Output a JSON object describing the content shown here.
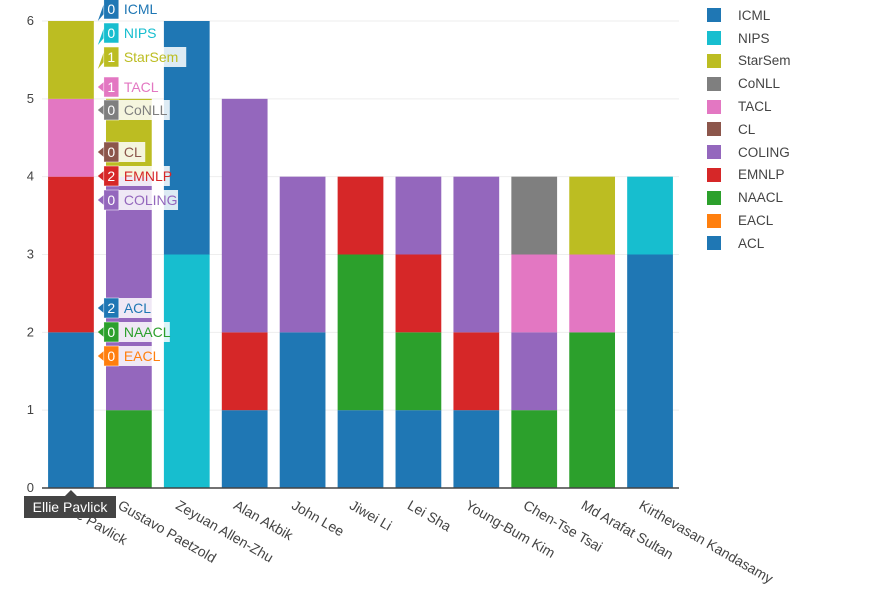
{
  "chart_data": {
    "type": "bar",
    "stacked": true,
    "categories": [
      "Ellie Pavlick",
      "Gustavo Paetzold",
      "Zeyuan Allen-Zhu",
      "Alan Akbik",
      "John Lee",
      "Jiwei Li",
      "Lei Sha",
      "Young-Bum Kim",
      "Chen-Tse Tsai",
      "Md Arafat Sultan",
      "Kirthevasan Kandasamy"
    ],
    "ylim": [
      0,
      6
    ],
    "yticks": [
      "0",
      "1",
      "2",
      "3",
      "4",
      "5",
      "6"
    ],
    "series": [
      {
        "name": "ACL",
        "color": "#1f77b4",
        "values": [
          2,
          0,
          0,
          1,
          2,
          1,
          1,
          1,
          0,
          0,
          3
        ]
      },
      {
        "name": "EACL",
        "color": "#ff7f0e",
        "values": [
          0,
          0,
          0,
          0,
          0,
          0,
          0,
          0,
          0,
          0,
          0
        ]
      },
      {
        "name": "NAACL",
        "color": "#2ca02c",
        "values": [
          0,
          1,
          0,
          0,
          0,
          2,
          1,
          0,
          1,
          2,
          0
        ]
      },
      {
        "name": "EMNLP",
        "color": "#d62728",
        "values": [
          2,
          0,
          0,
          1,
          0,
          1,
          1,
          1,
          0,
          0,
          0
        ]
      },
      {
        "name": "COLING",
        "color": "#9467bd",
        "values": [
          0,
          3,
          0,
          3,
          2,
          0,
          1,
          2,
          1,
          0,
          0
        ]
      },
      {
        "name": "CL",
        "color": "#8c564b",
        "values": [
          0,
          0,
          0,
          0,
          0,
          0,
          0,
          0,
          0,
          0,
          0
        ]
      },
      {
        "name": "TACL",
        "color": "#e377c2",
        "values": [
          1,
          0,
          0,
          0,
          0,
          0,
          0,
          0,
          1,
          1,
          0
        ]
      },
      {
        "name": "CoNLL",
        "color": "#7f7f7f",
        "values": [
          0,
          0,
          0,
          0,
          0,
          0,
          0,
          0,
          1,
          0,
          0
        ]
      },
      {
        "name": "StarSem",
        "color": "#bcbd22",
        "values": [
          1,
          1,
          0,
          0,
          0,
          0,
          0,
          0,
          0,
          1,
          0
        ]
      },
      {
        "name": "NIPS",
        "color": "#17becf",
        "values": [
          0,
          0,
          3,
          0,
          0,
          0,
          0,
          0,
          0,
          0,
          1
        ]
      },
      {
        "name": "ICML",
        "color": "#1f77b4",
        "values": [
          0,
          0,
          3,
          0,
          0,
          0,
          0,
          0,
          0,
          0,
          0
        ]
      }
    ],
    "legend_order": [
      "ICML",
      "NIPS",
      "StarSem",
      "CoNLL",
      "TACL",
      "CL",
      "COLING",
      "EMNLP",
      "NAACL",
      "EACL",
      "ACL"
    ],
    "legend_position": "top-right",
    "hover": {
      "category": "Ellie Pavlick",
      "axis_label": "Ellie Pavlick",
      "labels": [
        {
          "series": "ICML",
          "value": "0"
        },
        {
          "series": "NIPS",
          "value": "0"
        },
        {
          "series": "StarSem",
          "value": "1"
        },
        {
          "series": "TACL",
          "value": "1"
        },
        {
          "series": "CoNLL",
          "value": "0"
        },
        {
          "series": "CL",
          "value": "0"
        },
        {
          "series": "EMNLP",
          "value": "2"
        },
        {
          "series": "COLING",
          "value": "0"
        },
        {
          "series": "ACL",
          "value": "2"
        },
        {
          "series": "NAACL",
          "value": "0"
        },
        {
          "series": "EACL",
          "value": "0"
        }
      ]
    }
  }
}
